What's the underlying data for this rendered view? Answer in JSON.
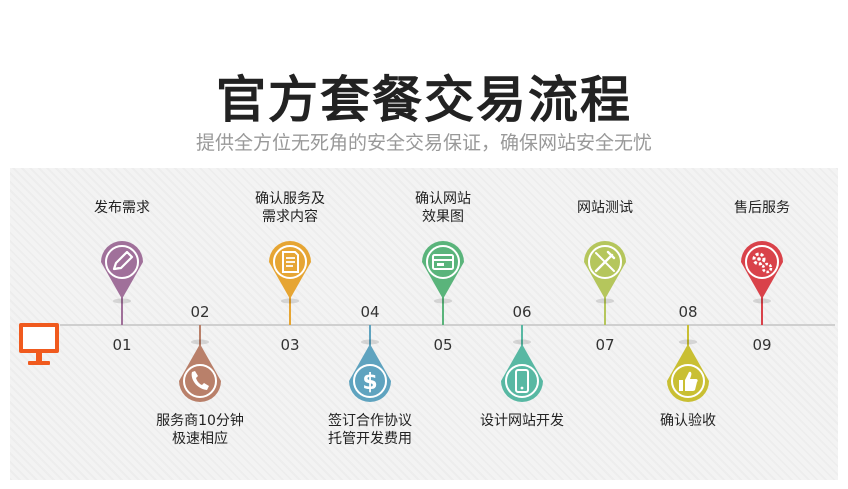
{
  "header": {
    "title": "官方套餐交易流程",
    "subtitle": "提供全方位无死角的安全交易保证，确保网站安全无忧"
  },
  "steps": [
    {
      "num": "01",
      "label": "发布需求",
      "color": "#a0709a",
      "icon": "pencil-icon",
      "pos": "top"
    },
    {
      "num": "02",
      "label": "服务商10分钟\n极速相应",
      "color": "#b9806a",
      "icon": "phone-icon",
      "pos": "bottom"
    },
    {
      "num": "03",
      "label": "确认服务及\n需求内容",
      "color": "#e6a533",
      "icon": "document-icon",
      "pos": "top"
    },
    {
      "num": "04",
      "label": "签订合作协议\n托管开发费用",
      "color": "#5fa3bf",
      "icon": "dollar-icon",
      "pos": "bottom"
    },
    {
      "num": "05",
      "label": "确认网站\n效果图",
      "color": "#5ab47b",
      "icon": "image-card-icon",
      "pos": "top"
    },
    {
      "num": "06",
      "label": "设计网站开发",
      "color": "#58b8a3",
      "icon": "mobile-icon",
      "pos": "bottom"
    },
    {
      "num": "07",
      "label": "网站测试",
      "color": "#b5c65c",
      "icon": "tools-icon",
      "pos": "top"
    },
    {
      "num": "08",
      "label": "确认验收",
      "color": "#c9bf33",
      "icon": "thumbs-up-icon",
      "pos": "bottom"
    },
    {
      "num": "09",
      "label": "售后服务",
      "color": "#d9424a",
      "icon": "gears-icon",
      "pos": "top"
    }
  ],
  "colors": {
    "monitor": "#f05a1e",
    "timeline": "#cfcfcf"
  }
}
